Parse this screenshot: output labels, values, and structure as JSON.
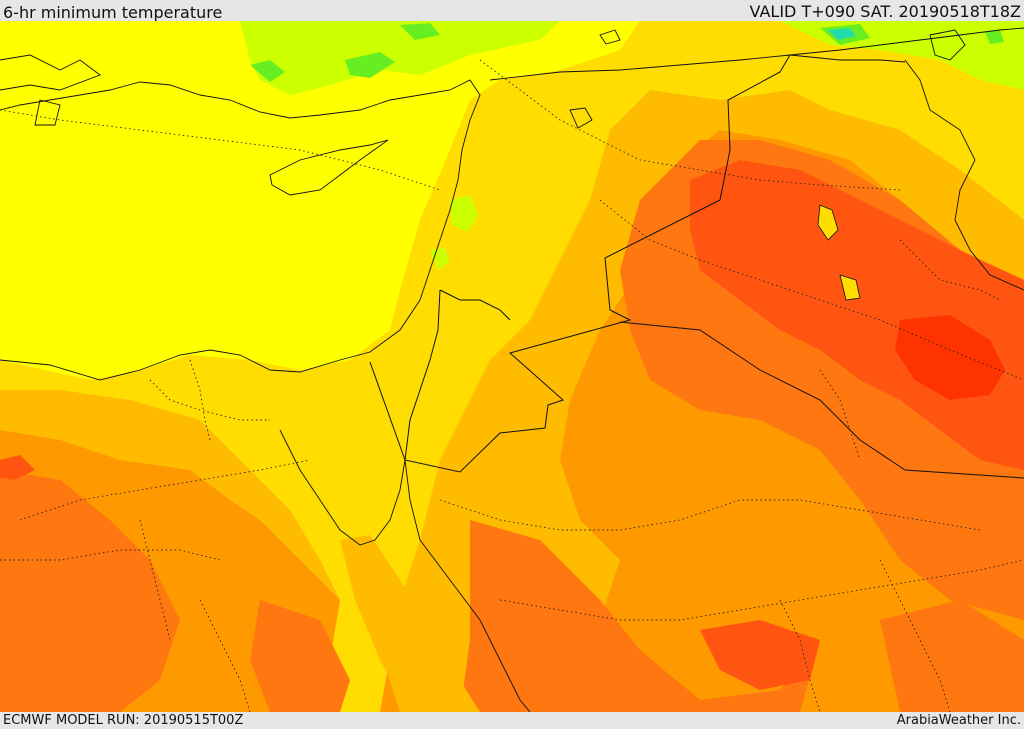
{
  "header": {
    "title": "6-hr minimum temperature",
    "valid": "VALID T+090 SAT. 20190518T18Z"
  },
  "footer": {
    "model_run": "ECMWF MODEL RUN: 20190515T00Z",
    "credit": "ArabiaWeather Inc."
  },
  "map": {
    "region": "Eastern Mediterranean and Middle East",
    "field": "6-hr minimum temperature",
    "palette": {
      "green": "#66ee22",
      "yellow_green": "#ccff00",
      "yellow": "#ffff00",
      "gold": "#ffdd00",
      "light_orange": "#ffbb00",
      "orange": "#ff9900",
      "dark_orange": "#ff7711",
      "red_orange": "#ff5511",
      "red": "#ff3300",
      "teal": "#22ddaa"
    },
    "boundary_color": "#111111"
  }
}
